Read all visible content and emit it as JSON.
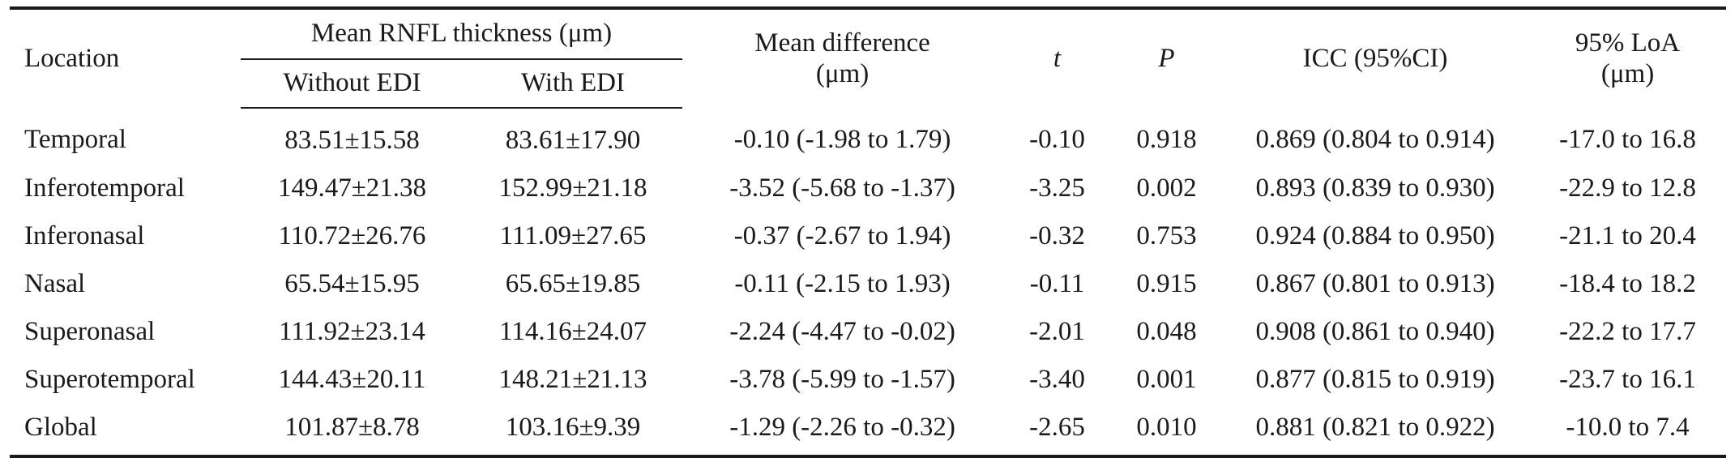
{
  "table": {
    "headers": {
      "location": "Location",
      "mean_rnfl": "Mean RNFL thickness (μm)",
      "without_edi": "Without EDI",
      "with_edi": "With EDI",
      "mean_difference_line1": "Mean difference",
      "mean_difference_line2": "(μm)",
      "t": "t",
      "p": "P",
      "icc": "ICC (95%CI)",
      "loa_line1": "95% LoA",
      "loa_line2": "(μm)"
    },
    "rows": [
      {
        "location": "Temporal",
        "without_edi": "83.51±15.58",
        "with_edi": "83.61±17.90",
        "mean_difference": "-0.10 (-1.98 to 1.79)",
        "t": "-0.10",
        "p": "0.918",
        "icc": "0.869 (0.804 to 0.914)",
        "loa": "-17.0 to 16.8"
      },
      {
        "location": "Inferotemporal",
        "without_edi": "149.47±21.38",
        "with_edi": "152.99±21.18",
        "mean_difference": "-3.52 (-5.68 to -1.37)",
        "t": "-3.25",
        "p": "0.002",
        "icc": "0.893 (0.839 to 0.930)",
        "loa": "-22.9 to 12.8"
      },
      {
        "location": "Inferonasal",
        "without_edi": "110.72±26.76",
        "with_edi": "111.09±27.65",
        "mean_difference": "-0.37 (-2.67 to 1.94)",
        "t": "-0.32",
        "p": "0.753",
        "icc": "0.924 (0.884 to 0.950)",
        "loa": "-21.1 to 20.4"
      },
      {
        "location": "Nasal",
        "without_edi": "65.54±15.95",
        "with_edi": "65.65±19.85",
        "mean_difference": "-0.11 (-2.15 to 1.93)",
        "t": "-0.11",
        "p": "0.915",
        "icc": "0.867 (0.801 to 0.913)",
        "loa": "-18.4 to 18.2"
      },
      {
        "location": "Superonasal",
        "without_edi": "111.92±23.14",
        "with_edi": "114.16±24.07",
        "mean_difference": "-2.24 (-4.47 to -0.02)",
        "t": "-2.01",
        "p": "0.048",
        "icc": "0.908 (0.861 to 0.940)",
        "loa": "-22.2 to 17.7"
      },
      {
        "location": "Superotemporal",
        "without_edi": "144.43±20.11",
        "with_edi": "148.21±21.13",
        "mean_difference": "-3.78 (-5.99 to -1.57)",
        "t": "-3.40",
        "p": "0.001",
        "icc": "0.877 (0.815 to 0.919)",
        "loa": "-23.7 to 16.1"
      },
      {
        "location": "Global",
        "without_edi": "101.87±8.78",
        "with_edi": "103.16±9.39",
        "mean_difference": "-1.29 (-2.26 to -0.32)",
        "t": "-2.65",
        "p": "0.010",
        "icc": "0.881 (0.821 to 0.922)",
        "loa": "-10.0 to 7.4"
      }
    ]
  }
}
